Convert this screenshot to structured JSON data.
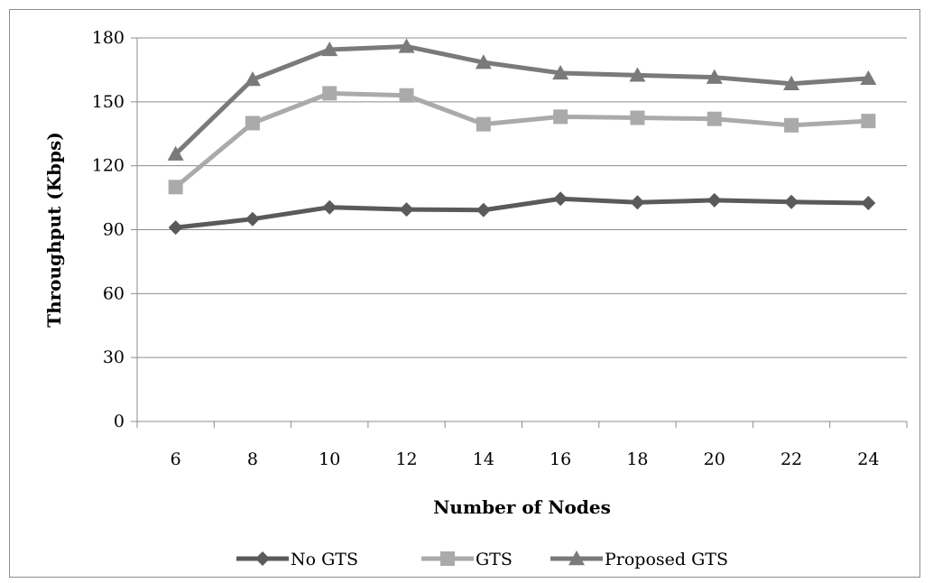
{
  "chart_data": {
    "type": "line",
    "title": "",
    "xlabel": "Number of Nodes",
    "ylabel": "Throughput (Kbps)",
    "categories": [
      "6",
      "8",
      "10",
      "12",
      "14",
      "16",
      "18",
      "20",
      "22",
      "24"
    ],
    "ylim": [
      0,
      180
    ],
    "yticks": [
      0,
      30,
      60,
      90,
      120,
      150,
      180
    ],
    "grid": "horizontal",
    "legend_position": "bottom",
    "series": [
      {
        "name": "No GTS",
        "marker": "diamond",
        "color": "#5a5a5a",
        "values": [
          91,
          95,
          100.5,
          99.5,
          99.2,
          104.5,
          102.8,
          103.8,
          103,
          102.5
        ]
      },
      {
        "name": "GTS",
        "marker": "square",
        "color": "#aaaaaa",
        "values": [
          110,
          140,
          154,
          153,
          139.5,
          143,
          142.5,
          142,
          139,
          141
        ]
      },
      {
        "name": "Proposed GTS",
        "marker": "triangle",
        "color": "#7a7a7a",
        "values": [
          125.5,
          160.5,
          174.5,
          176,
          168.5,
          163.5,
          162.5,
          161.5,
          158.5,
          161
        ]
      }
    ]
  }
}
